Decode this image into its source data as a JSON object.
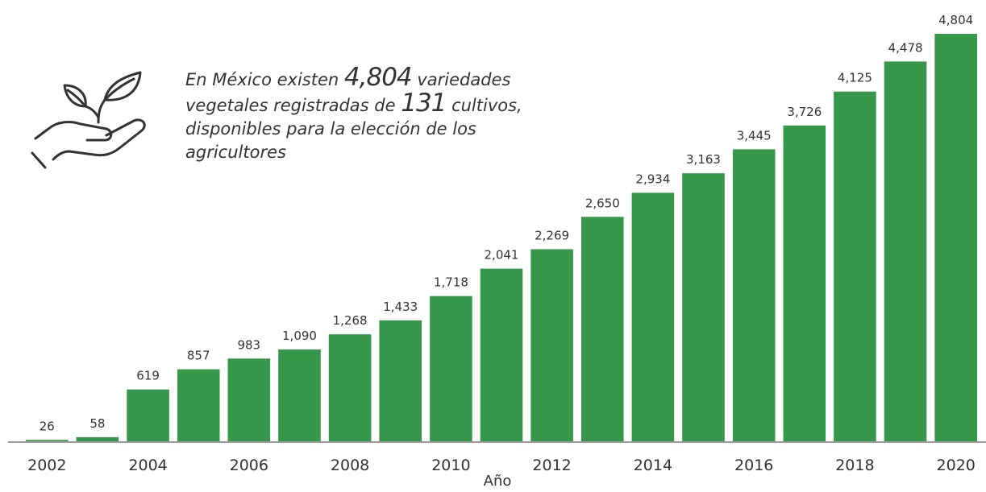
{
  "callout": {
    "part1": "En México existen ",
    "count_varieties": "4,804",
    "part2": " variedades vegetales registradas de ",
    "count_crops": "131",
    "part3": " cultivos, disponibles para la elección de los agricultores",
    "icon": "plant-in-hand-icon"
  },
  "colors": {
    "bar": "#37974b",
    "axis": "#999999",
    "text": "#333333"
  },
  "chart_data": {
    "type": "bar",
    "xlabel": "Año",
    "categories": [
      "2002",
      "2003",
      "2004",
      "2005",
      "2006",
      "2007",
      "2008",
      "2009",
      "2010",
      "2011",
      "2012",
      "2013",
      "2014",
      "2015",
      "2016",
      "2017",
      "2018",
      "2019",
      "2020"
    ],
    "values": [
      26,
      58,
      619,
      857,
      983,
      1090,
      1268,
      1433,
      1718,
      2041,
      2269,
      2650,
      2934,
      3163,
      3445,
      3726,
      4125,
      4478,
      4804
    ],
    "value_labels": [
      "26",
      "58",
      "619",
      "857",
      "983",
      "1,090",
      "1,268",
      "1,433",
      "1,718",
      "2,041",
      "2,269",
      "2,650",
      "2,934",
      "3,163",
      "3,445",
      "3,726",
      "4,125",
      "4,478",
      "4,804"
    ],
    "x_tick_labels": [
      "2002",
      "2004",
      "2006",
      "2008",
      "2010",
      "2012",
      "2014",
      "2016",
      "2018",
      "2020"
    ],
    "ylim": [
      0,
      4804
    ],
    "grid": false,
    "legend": "none"
  }
}
